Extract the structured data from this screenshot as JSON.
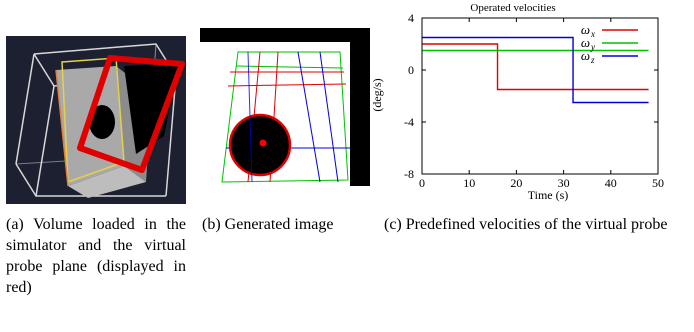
{
  "captions": {
    "a": "(a) Volume loaded in the simulator and the virtual probe plane (displayed in red)",
    "b": "(b) Generated image",
    "c": "(c) Predefined velocities of the virtual probe"
  },
  "colors": {
    "panel_a_background": "#1c2030",
    "probe_plane": "#e00000",
    "series_x": "#e00000",
    "series_y": "#00c000",
    "series_z": "#0000dd"
  },
  "chart_data": {
    "type": "line",
    "title": "Operated velocities",
    "xlabel": "Time (s)",
    "ylabel": "(deg/s)",
    "xlim": [
      0,
      50
    ],
    "ylim": [
      -8,
      4
    ],
    "xticks": [
      "0",
      "10",
      "20",
      "30",
      "40",
      "50"
    ],
    "yticks": [
      "4",
      "0",
      "-4",
      "-8"
    ],
    "legend_position": "top-right",
    "series": [
      {
        "name": "ω",
        "subscript": "x",
        "color": "#e00000",
        "points": [
          [
            0,
            2.0
          ],
          [
            16,
            2.0
          ],
          [
            16,
            -1.5
          ],
          [
            48,
            -1.5
          ]
        ]
      },
      {
        "name": "ω",
        "subscript": "y",
        "color": "#00c000",
        "points": [
          [
            0,
            1.5
          ],
          [
            48,
            1.5
          ]
        ]
      },
      {
        "name": "ω",
        "subscript": "z",
        "color": "#0000dd",
        "points": [
          [
            0,
            2.5
          ],
          [
            32,
            2.5
          ],
          [
            32,
            -2.5
          ],
          [
            48,
            -2.5
          ]
        ]
      }
    ]
  }
}
